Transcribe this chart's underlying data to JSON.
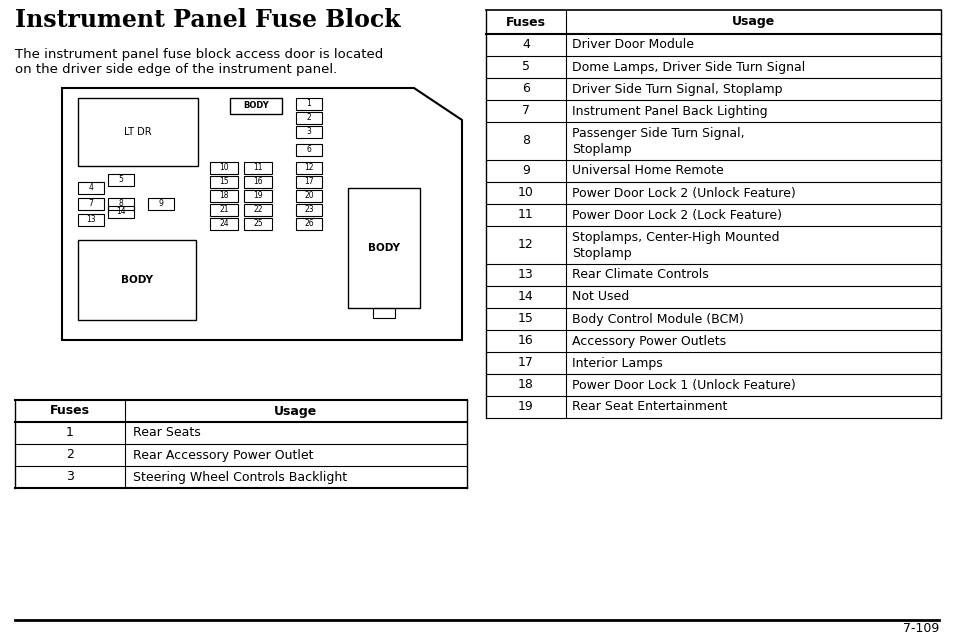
{
  "title": "Instrument Panel Fuse Block",
  "description_line1": "The instrument panel fuse block access door is located",
  "description_line2": "on the driver side edge of the instrument panel.",
  "left_table_header": [
    "Fuses",
    "Usage"
  ],
  "left_table_data": [
    [
      "1",
      "Rear Seats"
    ],
    [
      "2",
      "Rear Accessory Power Outlet"
    ],
    [
      "3",
      "Steering Wheel Controls Backlight"
    ]
  ],
  "right_table_header": [
    "Fuses",
    "Usage"
  ],
  "right_table_data": [
    [
      "4",
      "Driver Door Module"
    ],
    [
      "5",
      "Dome Lamps, Driver Side Turn Signal"
    ],
    [
      "6",
      "Driver Side Turn Signal, Stoplamp"
    ],
    [
      "7",
      "Instrument Panel Back Lighting"
    ],
    [
      "8",
      "Passenger Side Turn Signal,\nStoplamp"
    ],
    [
      "9",
      "Universal Home Remote"
    ],
    [
      "10",
      "Power Door Lock 2 (Unlock Feature)"
    ],
    [
      "11",
      "Power Door Lock 2 (Lock Feature)"
    ],
    [
      "12",
      "Stoplamps, Center-High Mounted\nStoplamp"
    ],
    [
      "13",
      "Rear Climate Controls"
    ],
    [
      "14",
      "Not Used"
    ],
    [
      "15",
      "Body Control Module (BCM)"
    ],
    [
      "16",
      "Accessory Power Outlets"
    ],
    [
      "17",
      "Interior Lamps"
    ],
    [
      "18",
      "Power Door Lock 1 (Unlock Feature)"
    ],
    [
      "19",
      "Rear Seat Entertainment"
    ]
  ],
  "page_number": "7-109",
  "bg_color": "#ffffff",
  "text_color": "#000000",
  "title_fontsize": 17,
  "desc_fontsize": 9.5,
  "table_fontsize": 9
}
